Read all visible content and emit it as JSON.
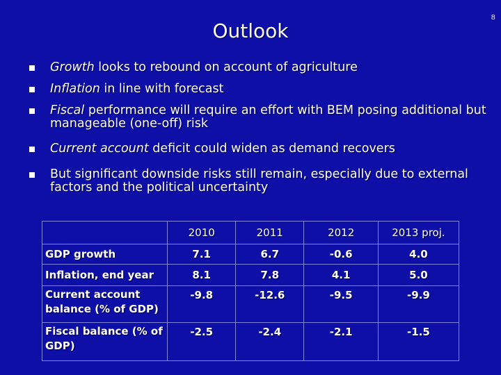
{
  "page_number": "8",
  "title": "Outlook",
  "bullets": [
    {
      "lead": "Growth",
      "text": " looks to rebound on account of agriculture"
    },
    {
      "lead": "Inflation",
      "text": " in line with forecast"
    },
    {
      "lead": "Fiscal",
      "text": " performance will require an effort with BEM posing additional but manageable (one-off) risk"
    },
    {
      "lead": "Current account",
      "text": " deficit could widen as demand recovers"
    },
    {
      "lead": "",
      "text": "But significant downside risks still remain, especially due to external factors and the political uncertainty"
    }
  ],
  "table": {
    "headers": [
      "",
      "2010",
      "2011",
      "2012",
      "2013 proj."
    ],
    "rows": [
      {
        "label": "GDP growth",
        "values": [
          "7.1",
          "6.7",
          "-0.6",
          "4.0"
        ]
      },
      {
        "label": "Inflation, end year",
        "values": [
          "8.1",
          "7.8",
          "4.1",
          "5.0"
        ]
      },
      {
        "label": "Current account balance (% of GDP)",
        "values": [
          "-9.8",
          "-12.6",
          "-9.5",
          "-9.9"
        ]
      },
      {
        "label": "Fiscal balance (% of GDP)",
        "values": [
          "-2.5",
          "-2.4",
          "-2.1",
          "-1.5"
        ]
      }
    ]
  }
}
